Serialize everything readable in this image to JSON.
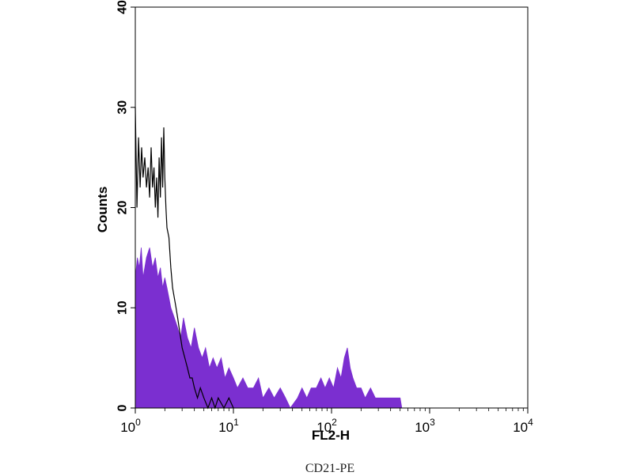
{
  "chart_data": {
    "type": "histogram",
    "xlabel": "FL2-H",
    "ylabel": "Counts",
    "caption": "CD21-PE",
    "x_scale": "log",
    "xlim": [
      1,
      10000
    ],
    "ylim": [
      0,
      40
    ],
    "x_ticks": [
      {
        "base": "10",
        "exp": "0",
        "value": 1
      },
      {
        "base": "10",
        "exp": "1",
        "value": 10
      },
      {
        "base": "10",
        "exp": "2",
        "value": 100
      },
      {
        "base": "10",
        "exp": "3",
        "value": 1000
      },
      {
        "base": "10",
        "exp": "4",
        "value": 10000
      }
    ],
    "y_ticks": [
      "0",
      "10",
      "20",
      "30",
      "40"
    ],
    "grid": false,
    "series": [
      {
        "style": "filled",
        "color": "#7b2fd0",
        "points": [
          [
            1.0,
            13
          ],
          [
            1.05,
            15
          ],
          [
            1.1,
            14
          ],
          [
            1.15,
            16
          ],
          [
            1.2,
            13
          ],
          [
            1.3,
            15
          ],
          [
            1.4,
            16
          ],
          [
            1.5,
            14
          ],
          [
            1.6,
            15
          ],
          [
            1.7,
            13
          ],
          [
            1.8,
            14
          ],
          [
            1.9,
            12
          ],
          [
            2.0,
            13
          ],
          [
            2.1,
            12
          ],
          [
            2.2,
            11
          ],
          [
            2.3,
            10
          ],
          [
            2.5,
            9
          ],
          [
            2.7,
            8
          ],
          [
            2.9,
            7
          ],
          [
            3.1,
            9
          ],
          [
            3.4,
            7
          ],
          [
            3.7,
            6
          ],
          [
            4.0,
            8
          ],
          [
            4.4,
            6
          ],
          [
            4.8,
            5
          ],
          [
            5.2,
            6
          ],
          [
            5.7,
            4
          ],
          [
            6.2,
            5
          ],
          [
            6.8,
            4
          ],
          [
            7.5,
            5
          ],
          [
            8.2,
            3
          ],
          [
            9.0,
            4
          ],
          [
            10.0,
            3
          ],
          [
            11.0,
            2
          ],
          [
            12.5,
            3
          ],
          [
            14.0,
            2
          ],
          [
            16.0,
            2
          ],
          [
            18.0,
            3
          ],
          [
            20.0,
            1
          ],
          [
            23.0,
            2
          ],
          [
            26.0,
            1
          ],
          [
            30.0,
            2
          ],
          [
            34.0,
            1
          ],
          [
            38.0,
            0
          ],
          [
            45.0,
            1
          ],
          [
            50.0,
            2
          ],
          [
            56.0,
            1
          ],
          [
            62.0,
            2
          ],
          [
            70.0,
            2
          ],
          [
            78.0,
            3
          ],
          [
            86.0,
            2
          ],
          [
            95.0,
            3
          ],
          [
            105,
            2
          ],
          [
            115,
            4
          ],
          [
            125,
            3
          ],
          [
            135,
            5
          ],
          [
            145,
            6
          ],
          [
            155,
            4
          ],
          [
            165,
            3
          ],
          [
            180,
            2
          ],
          [
            200,
            2
          ],
          [
            220,
            1
          ],
          [
            250,
            2
          ],
          [
            280,
            1
          ],
          [
            320,
            1
          ],
          [
            360,
            1
          ],
          [
            400,
            1
          ],
          [
            450,
            1
          ],
          [
            500,
            1
          ],
          [
            520,
            0
          ]
        ]
      },
      {
        "style": "line",
        "color": "#000000",
        "points": [
          [
            1.0,
            30
          ],
          [
            1.04,
            20
          ],
          [
            1.08,
            27
          ],
          [
            1.12,
            22
          ],
          [
            1.16,
            26
          ],
          [
            1.2,
            23
          ],
          [
            1.25,
            25
          ],
          [
            1.3,
            22
          ],
          [
            1.35,
            24
          ],
          [
            1.4,
            21
          ],
          [
            1.45,
            26
          ],
          [
            1.5,
            22
          ],
          [
            1.55,
            24
          ],
          [
            1.6,
            20
          ],
          [
            1.65,
            23
          ],
          [
            1.7,
            19
          ],
          [
            1.75,
            25
          ],
          [
            1.8,
            21
          ],
          [
            1.85,
            27
          ],
          [
            1.9,
            22
          ],
          [
            1.95,
            28
          ],
          [
            2.0,
            23
          ],
          [
            2.05,
            20
          ],
          [
            2.1,
            18
          ],
          [
            2.2,
            17
          ],
          [
            2.3,
            14
          ],
          [
            2.4,
            12
          ],
          [
            2.5,
            11
          ],
          [
            2.6,
            10
          ],
          [
            2.7,
            9
          ],
          [
            2.8,
            8
          ],
          [
            2.9,
            7
          ],
          [
            3.0,
            6
          ],
          [
            3.2,
            5
          ],
          [
            3.4,
            4
          ],
          [
            3.6,
            3
          ],
          [
            3.8,
            3
          ],
          [
            4.0,
            2
          ],
          [
            4.3,
            1
          ],
          [
            4.6,
            2
          ],
          [
            5.0,
            1
          ],
          [
            5.5,
            0
          ],
          [
            6.0,
            1
          ],
          [
            6.5,
            0
          ],
          [
            7.0,
            1
          ],
          [
            8.0,
            0
          ],
          [
            9.0,
            1
          ],
          [
            10.0,
            0
          ]
        ]
      }
    ]
  }
}
